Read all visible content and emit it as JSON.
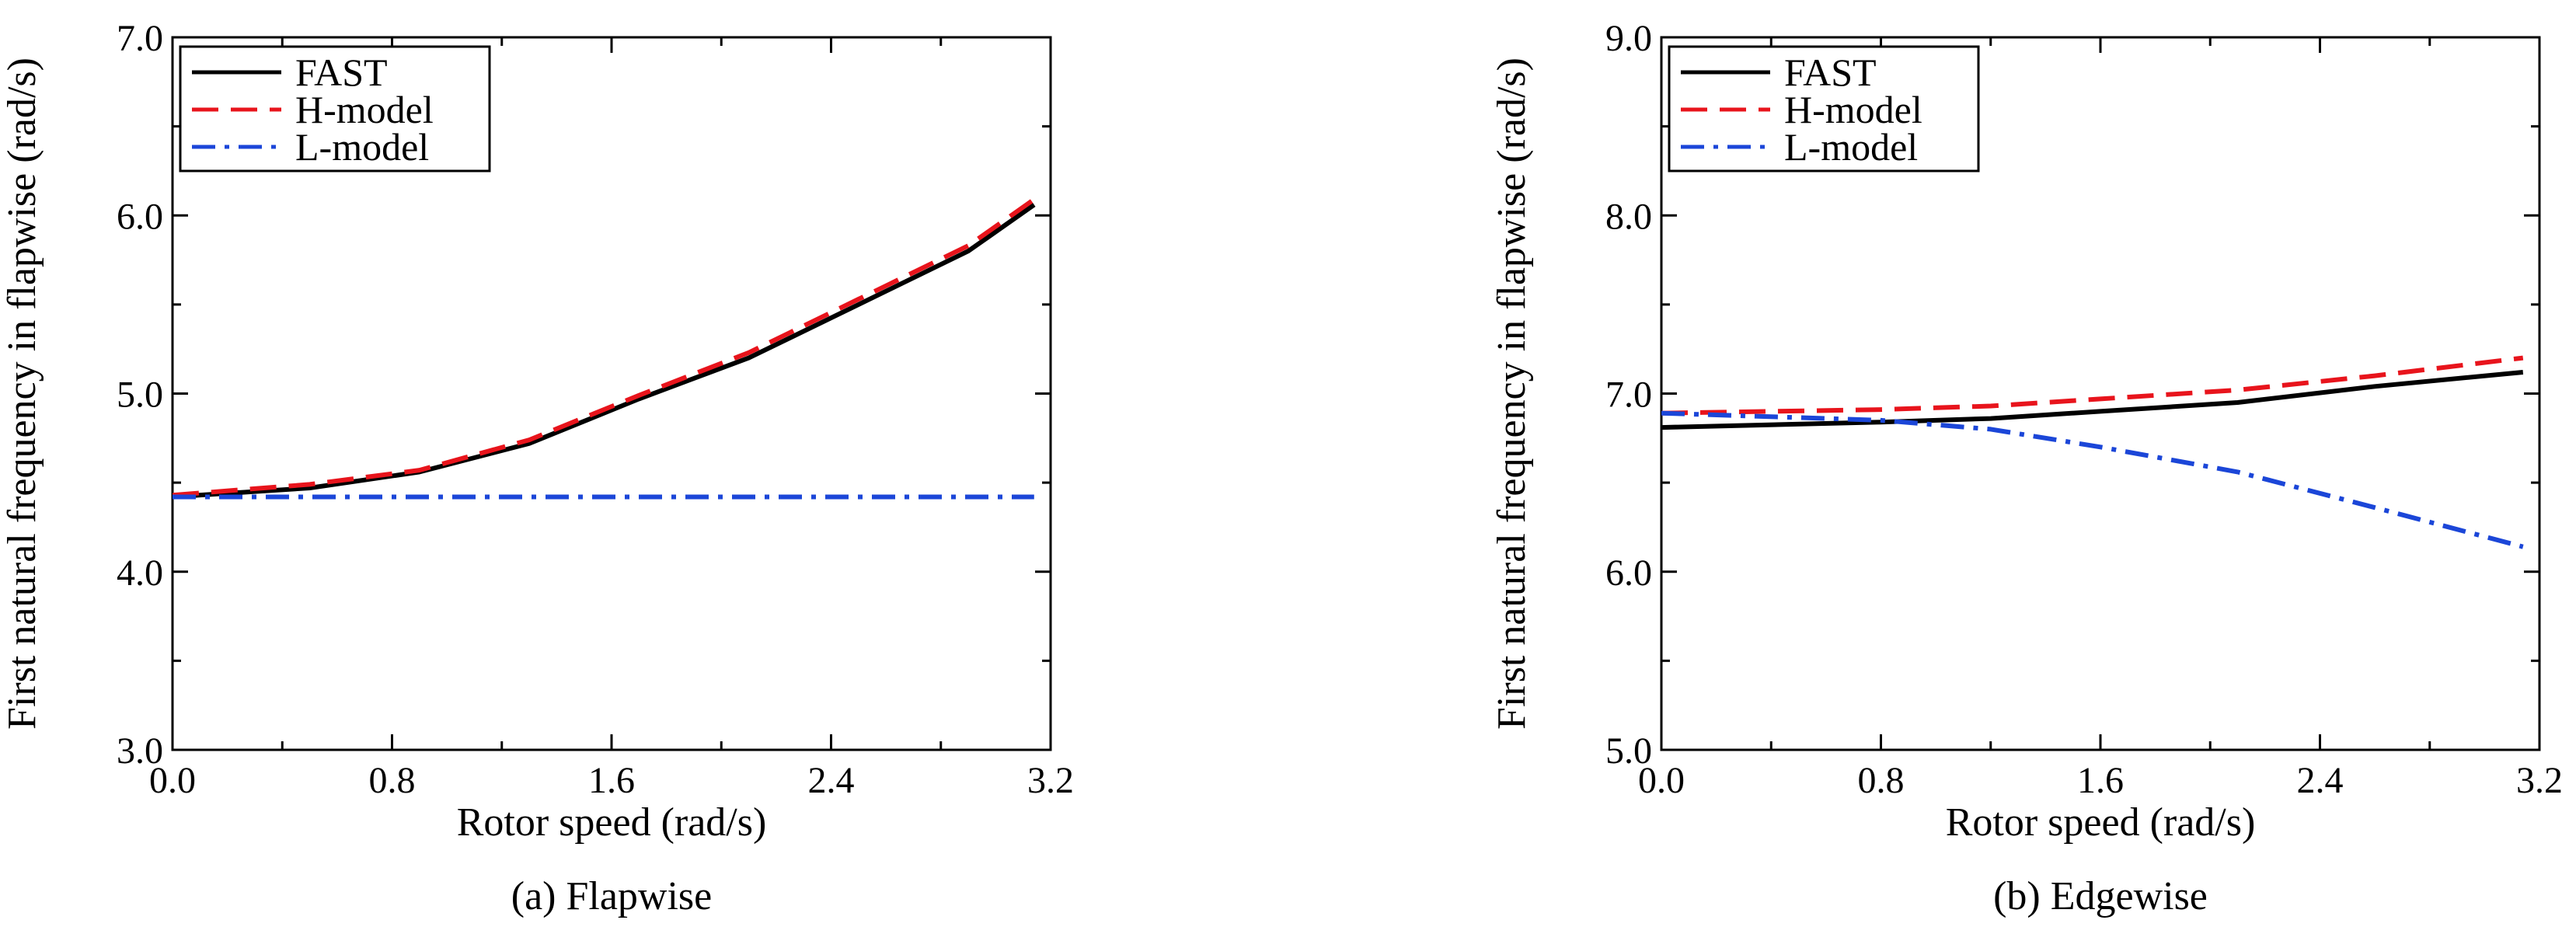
{
  "chart_data": [
    {
      "type": "line",
      "caption": "(a) Flapwise",
      "xlabel": "Rotor speed (rad/s)",
      "ylabel": "First natural frequency in flapwise (rad/s)",
      "xlim": [
        0.0,
        3.2
      ],
      "ylim": [
        3.0,
        7.0
      ],
      "xticks": [
        "0.0",
        "0.8",
        "1.6",
        "2.4",
        "3.2"
      ],
      "yticks": [
        "3.0",
        "4.0",
        "5.0",
        "6.0",
        "7.0"
      ],
      "grid": false,
      "legend_position": "top-left",
      "series": [
        {
          "name": "FAST",
          "color": "#000000",
          "dash": "solid",
          "x": [
            0.0,
            0.5,
            0.9,
            1.3,
            1.7,
            2.1,
            2.5,
            2.9,
            3.14
          ],
          "y": [
            4.42,
            4.47,
            4.56,
            4.72,
            4.97,
            5.2,
            5.5,
            5.8,
            6.06
          ]
        },
        {
          "name": "H-model",
          "color": "#e8141c",
          "dash": "dashed",
          "x": [
            0.0,
            0.5,
            0.9,
            1.3,
            1.7,
            2.1,
            2.5,
            2.9,
            3.14
          ],
          "y": [
            4.43,
            4.49,
            4.57,
            4.74,
            4.99,
            5.23,
            5.53,
            5.83,
            6.09
          ]
        },
        {
          "name": "L-model",
          "color": "#1b46d8",
          "dash": "dashdot",
          "x": [
            0.0,
            3.14
          ],
          "y": [
            4.42,
            4.42
          ]
        }
      ]
    },
    {
      "type": "line",
      "caption": "(b) Edgewise",
      "xlabel": "Rotor speed (rad/s)",
      "ylabel": "First natural frequency in flapwise (rad/s)",
      "xlim": [
        0.0,
        3.2
      ],
      "ylim": [
        5.0,
        9.0
      ],
      "xticks": [
        "0.0",
        "0.8",
        "1.6",
        "2.4",
        "3.2"
      ],
      "yticks": [
        "5.0",
        "6.0",
        "7.0",
        "8.0",
        "9.0"
      ],
      "grid": false,
      "legend_position": "top-left",
      "series": [
        {
          "name": "FAST",
          "color": "#000000",
          "dash": "solid",
          "x": [
            0.0,
            0.8,
            1.2,
            1.6,
            2.1,
            2.6,
            3.14
          ],
          "y": [
            6.81,
            6.84,
            6.86,
            6.9,
            6.95,
            7.04,
            7.12
          ]
        },
        {
          "name": "H-model",
          "color": "#e8141c",
          "dash": "dashed",
          "x": [
            0.0,
            0.8,
            1.2,
            1.6,
            2.1,
            2.6,
            3.14
          ],
          "y": [
            6.89,
            6.91,
            6.93,
            6.97,
            7.02,
            7.1,
            7.2
          ]
        },
        {
          "name": "L-model",
          "color": "#1b46d8",
          "dash": "dashdot",
          "x": [
            0.0,
            0.8,
            1.2,
            1.6,
            2.1,
            2.6,
            3.14
          ],
          "y": [
            6.89,
            6.85,
            6.8,
            6.7,
            6.56,
            6.36,
            6.14
          ]
        }
      ]
    }
  ]
}
